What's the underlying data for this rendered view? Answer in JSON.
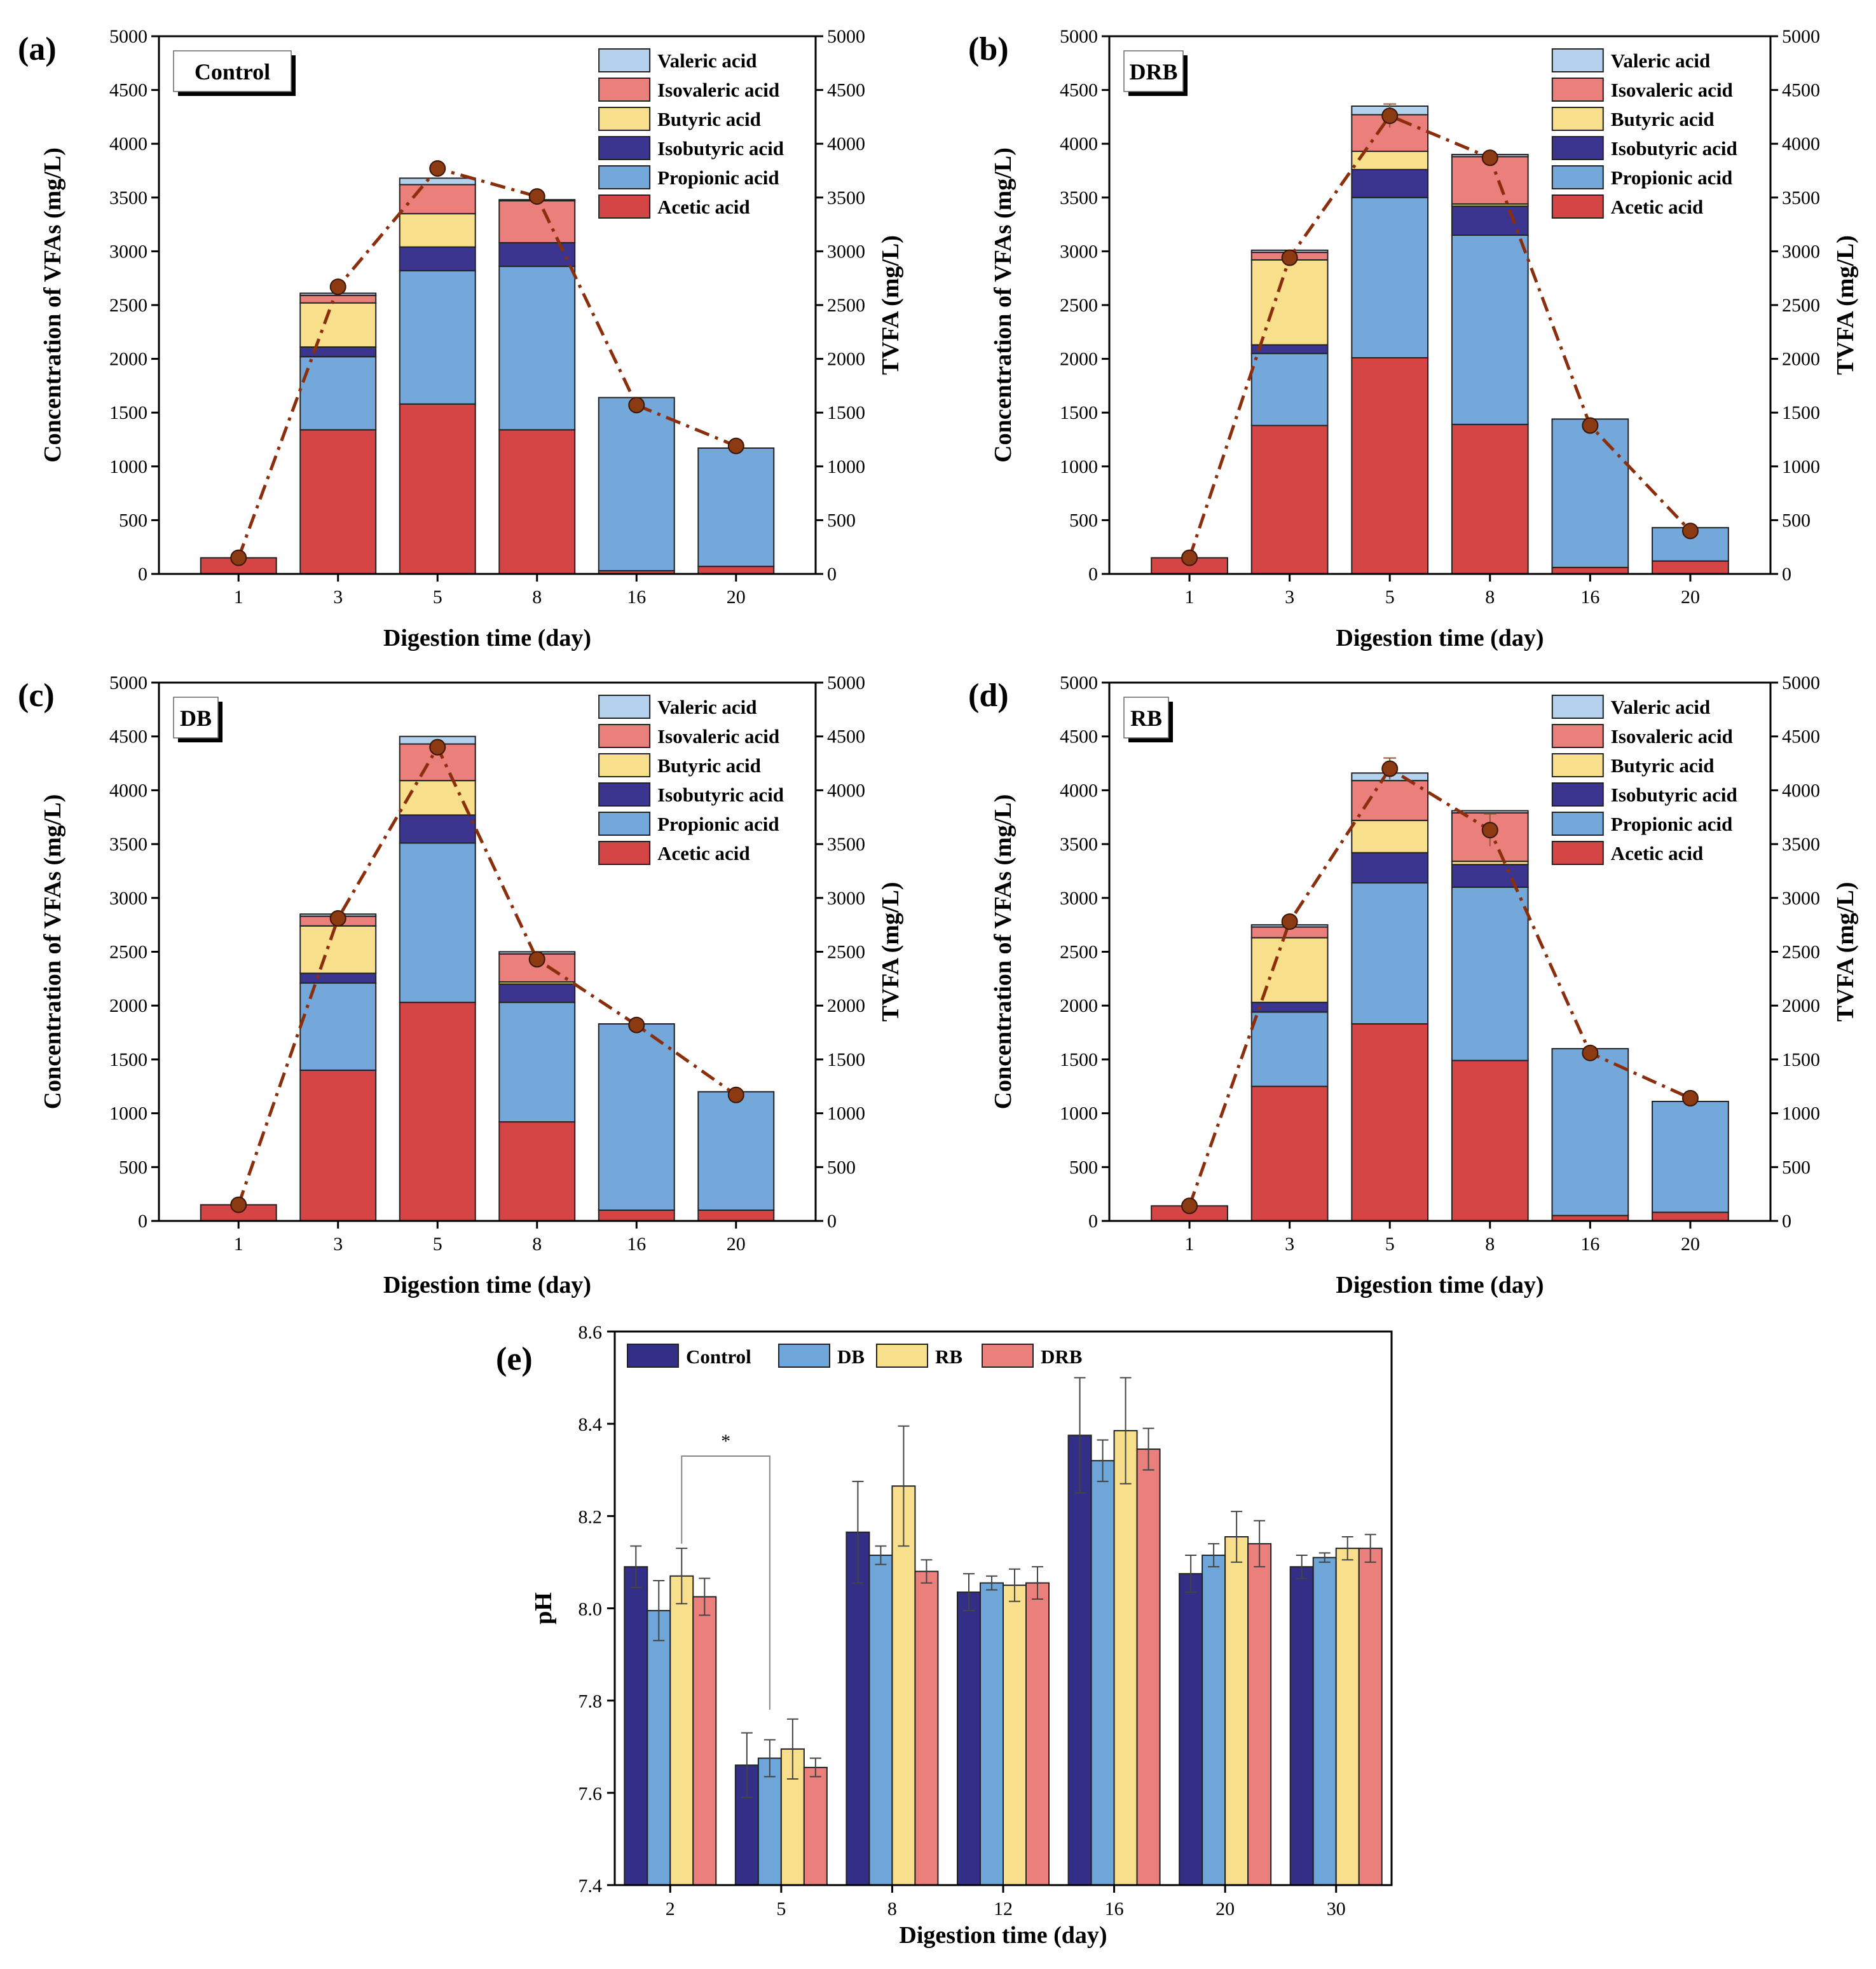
{
  "colors": {
    "acetic": "#d64545",
    "propionic": "#74a8da",
    "isobutyric": "#3b3590",
    "butyric": "#f8df8c",
    "isovaleric": "#ea7f7b",
    "valeric": "#b4d2ee",
    "tvfa_line": "#8b2e0c",
    "tvfa_marker": "#8b3a12",
    "control": "#332f86",
    "db": "#6ea6d9",
    "rb": "#f8df8c",
    "drb": "#ea7f7b"
  },
  "chart_data": [
    {
      "type": "bar",
      "stacked": true,
      "panel_label": "(a)",
      "box_label": "Control",
      "xlabel": "Digestion time (day)",
      "ylabel": "Concentration of VFAs (mg/L)",
      "ylabel_right": "TVFA (mg/L)",
      "ylim": [
        0,
        5000
      ],
      "yticks": [
        "0",
        "500",
        "1000",
        "1500",
        "2000",
        "2500",
        "3000",
        "3500",
        "4000",
        "4500",
        "5000"
      ],
      "categories": [
        "1",
        "3",
        "5",
        "8",
        "16",
        "20"
      ],
      "legend": [
        "Valeric acid",
        "Isovaleric acid",
        "Butyric acid",
        "Isobutyric acid",
        "Propionic acid",
        "Acetic acid"
      ],
      "series": [
        {
          "name": "Acetic acid",
          "color_key": "acetic",
          "values": [
            150,
            1340,
            1580,
            1340,
            30,
            70
          ]
        },
        {
          "name": "Propionic acid",
          "color_key": "propionic",
          "values": [
            0,
            680,
            1240,
            1520,
            1610,
            1100
          ]
        },
        {
          "name": "Isobutyric acid",
          "color_key": "isobutyric",
          "values": [
            0,
            90,
            220,
            220,
            0,
            0
          ]
        },
        {
          "name": "Butyric acid",
          "color_key": "butyric",
          "values": [
            0,
            410,
            310,
            0,
            0,
            0
          ]
        },
        {
          "name": "Isovaleric acid",
          "color_key": "isovaleric",
          "values": [
            0,
            70,
            270,
            390,
            0,
            0
          ]
        },
        {
          "name": "Valeric acid",
          "color_key": "valeric",
          "values": [
            0,
            20,
            60,
            10,
            0,
            0
          ]
        }
      ],
      "tvfa": {
        "values": [
          150,
          2670,
          3770,
          3510,
          1570,
          1190
        ],
        "errors": [
          0,
          0,
          0,
          0,
          0,
          0
        ]
      }
    },
    {
      "type": "bar",
      "stacked": true,
      "panel_label": "(b)",
      "box_label": "DRB",
      "xlabel": "Digestion time (day)",
      "ylabel": "Concentration of VFAs (mg/L)",
      "ylabel_right": "TVFA (mg/L)",
      "ylim": [
        0,
        5000
      ],
      "yticks": [
        "0",
        "500",
        "1000",
        "1500",
        "2000",
        "2500",
        "3000",
        "3500",
        "4000",
        "4500",
        "5000"
      ],
      "categories": [
        "1",
        "3",
        "5",
        "8",
        "16",
        "20"
      ],
      "legend": [
        "Valeric acid",
        "Isovaleric acid",
        "Butyric acid",
        "Isobutyric acid",
        "Propionic acid",
        "Acetic acid"
      ],
      "series": [
        {
          "name": "Acetic acid",
          "color_key": "acetic",
          "values": [
            150,
            1380,
            2010,
            1390,
            60,
            120
          ]
        },
        {
          "name": "Propionic acid",
          "color_key": "propionic",
          "values": [
            0,
            670,
            1490,
            1760,
            1380,
            310
          ]
        },
        {
          "name": "Isobutyric acid",
          "color_key": "isobutyric",
          "values": [
            0,
            80,
            260,
            270,
            0,
            0
          ]
        },
        {
          "name": "Butyric acid",
          "color_key": "butyric",
          "values": [
            0,
            790,
            170,
            20,
            0,
            0
          ]
        },
        {
          "name": "Isovaleric acid",
          "color_key": "isovaleric",
          "values": [
            0,
            70,
            340,
            440,
            0,
            0
          ]
        },
        {
          "name": "Valeric acid",
          "color_key": "valeric",
          "values": [
            0,
            20,
            80,
            20,
            0,
            0
          ]
        }
      ],
      "tvfa": {
        "values": [
          150,
          2940,
          4260,
          3870,
          1380,
          400
        ],
        "errors": [
          0,
          40,
          110,
          30,
          0,
          0
        ]
      }
    },
    {
      "type": "bar",
      "stacked": true,
      "panel_label": "(c)",
      "box_label": "DB",
      "xlabel": "Digestion time (day)",
      "ylabel": "Concentration of VFAs (mg/L)",
      "ylabel_right": "TVFA (mg/L)",
      "ylim": [
        0,
        5000
      ],
      "yticks": [
        "0",
        "500",
        "1000",
        "1500",
        "2000",
        "2500",
        "3000",
        "3500",
        "4000",
        "4500",
        "5000"
      ],
      "categories": [
        "1",
        "3",
        "5",
        "8",
        "16",
        "20"
      ],
      "legend": [
        "Valeric acid",
        "Isovaleric acid",
        "Butyric acid",
        "Isobutyric acid",
        "Propionic acid",
        "Acetic acid"
      ],
      "series": [
        {
          "name": "Acetic acid",
          "color_key": "acetic",
          "values": [
            150,
            1400,
            2030,
            920,
            100,
            100
          ]
        },
        {
          "name": "Propionic acid",
          "color_key": "propionic",
          "values": [
            0,
            810,
            1480,
            1110,
            1730,
            1100
          ]
        },
        {
          "name": "Isobutyric acid",
          "color_key": "isobutyric",
          "values": [
            0,
            90,
            260,
            170,
            0,
            0
          ]
        },
        {
          "name": "Butyric acid",
          "color_key": "butyric",
          "values": [
            0,
            440,
            320,
            20,
            0,
            0
          ]
        },
        {
          "name": "Isovaleric acid",
          "color_key": "isovaleric",
          "values": [
            0,
            90,
            340,
            260,
            0,
            0
          ]
        },
        {
          "name": "Valeric acid",
          "color_key": "valeric",
          "values": [
            0,
            20,
            70,
            20,
            0,
            0
          ]
        }
      ],
      "tvfa": {
        "values": [
          150,
          2810,
          4400,
          2430,
          1820,
          1170
        ],
        "errors": [
          0,
          0,
          0,
          0,
          0,
          0
        ]
      }
    },
    {
      "type": "bar",
      "stacked": true,
      "panel_label": "(d)",
      "box_label": "RB",
      "xlabel": "Digestion time (day)",
      "ylabel": "Concentration of VFAs (mg/L)",
      "ylabel_right": "TVFA (mg/L)",
      "ylim": [
        0,
        5000
      ],
      "yticks": [
        "0",
        "500",
        "1000",
        "1500",
        "2000",
        "2500",
        "3000",
        "3500",
        "4000",
        "4500",
        "5000"
      ],
      "categories": [
        "1",
        "3",
        "5",
        "8",
        "16",
        "20"
      ],
      "legend": [
        "Valeric acid",
        "Isovaleric acid",
        "Butyric acid",
        "Isobutyric acid",
        "Propionic acid",
        "Acetic acid"
      ],
      "series": [
        {
          "name": "Acetic acid",
          "color_key": "acetic",
          "values": [
            140,
            1250,
            1830,
            1490,
            50,
            80
          ]
        },
        {
          "name": "Propionic acid",
          "color_key": "propionic",
          "values": [
            0,
            690,
            1310,
            1610,
            1550,
            1030
          ]
        },
        {
          "name": "Isobutyric acid",
          "color_key": "isobutyric",
          "values": [
            0,
            90,
            280,
            210,
            0,
            0
          ]
        },
        {
          "name": "Butyric acid",
          "color_key": "butyric",
          "values": [
            0,
            600,
            300,
            30,
            0,
            0
          ]
        },
        {
          "name": "Isovaleric acid",
          "color_key": "isovaleric",
          "values": [
            0,
            100,
            370,
            450,
            0,
            0
          ]
        },
        {
          "name": "Valeric acid",
          "color_key": "valeric",
          "values": [
            0,
            20,
            70,
            20,
            0,
            0
          ]
        }
      ],
      "tvfa": {
        "values": [
          140,
          2780,
          4200,
          3630,
          1560,
          1140
        ],
        "errors": [
          0,
          40,
          100,
          150,
          0,
          0
        ]
      }
    },
    {
      "type": "bar",
      "stacked": false,
      "panel_label": "(e)",
      "xlabel": "Digestion time (day)",
      "ylabel": "pH",
      "ylim": [
        7.4,
        8.6
      ],
      "yticks": [
        "7.4",
        "7.6",
        "7.8",
        "8.0",
        "8.2",
        "8.4",
        "8.6"
      ],
      "categories": [
        "2",
        "5",
        "8",
        "12",
        "16",
        "20",
        "30"
      ],
      "legend": [
        "Control",
        "DB",
        "RB",
        "DRB"
      ],
      "series": [
        {
          "name": "Control",
          "color_key": "control",
          "values": [
            8.09,
            7.66,
            8.165,
            8.035,
            8.375,
            8.075,
            8.09
          ],
          "errors": [
            0.045,
            0.07,
            0.11,
            0.04,
            0.125,
            0.04,
            0.025
          ]
        },
        {
          "name": "DB",
          "color_key": "db",
          "values": [
            7.995,
            7.675,
            8.115,
            8.055,
            8.32,
            8.115,
            8.11
          ],
          "errors": [
            0.065,
            0.04,
            0.02,
            0.015,
            0.045,
            0.025,
            0.01
          ]
        },
        {
          "name": "RB",
          "color_key": "rb",
          "values": [
            8.07,
            7.695,
            8.265,
            8.05,
            8.385,
            8.155,
            8.13
          ],
          "errors": [
            0.06,
            0.065,
            0.13,
            0.035,
            0.115,
            0.055,
            0.025
          ]
        },
        {
          "name": "DRB",
          "color_key": "drb",
          "values": [
            8.025,
            7.655,
            8.08,
            8.055,
            8.345,
            8.14,
            8.13
          ],
          "errors": [
            0.04,
            0.02,
            0.025,
            0.035,
            0.045,
            0.05,
            0.03
          ]
        }
      ],
      "annotation": {
        "text": "*",
        "from_category": "2",
        "to_category": "5"
      }
    }
  ]
}
